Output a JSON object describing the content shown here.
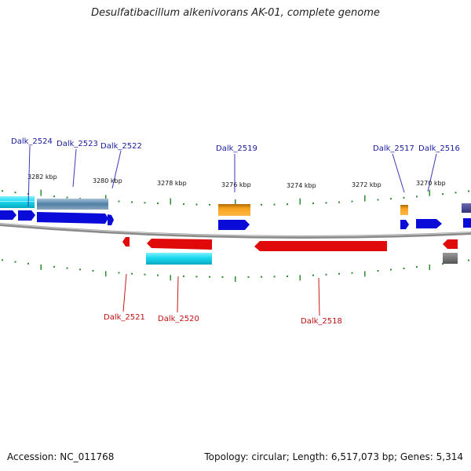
{
  "title": "Desulfatibacillum alkenivorans AK-01, complete genome",
  "footer": {
    "accession": "Accession: NC_011768",
    "summary": "Topology: circular; Length: 6,517,073 bp; Genes: 5,314"
  },
  "colors": {
    "forward_gene": "#0b0bd9",
    "reverse_gene": "#e00a0a",
    "forward_label": "#1a1aa0",
    "reverse_label": "#c01010",
    "tick": "#2e8b2e",
    "backbone": "#8a8a8a"
  },
  "scale_labels": [
    {
      "name": "kbp-3282",
      "text": "3282 kbp"
    },
    {
      "name": "kbp-3280",
      "text": "3280 kbp"
    },
    {
      "name": "kbp-3278",
      "text": "3278 kbp"
    },
    {
      "name": "kbp-3276",
      "text": "3276 kbp"
    },
    {
      "name": "kbp-3274",
      "text": "3274 kbp"
    },
    {
      "name": "kbp-3272",
      "text": "3272 kbp"
    },
    {
      "name": "kbp-3270",
      "text": "3270 kbp"
    }
  ],
  "forward_gene_labels": [
    "Dalk_2524",
    "Dalk_2523",
    "Dalk_2522",
    "Dalk_2519",
    "Dalk_2517",
    "Dalk_2516"
  ],
  "reverse_gene_labels": [
    "Dalk_2521",
    "Dalk_2520",
    "Dalk_2518"
  ]
}
